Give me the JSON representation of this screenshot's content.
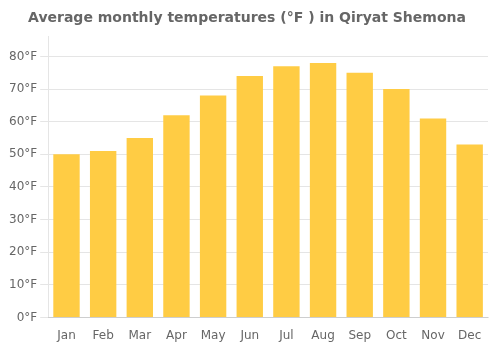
{
  "chart_data": {
    "type": "bar",
    "title": "Average monthly temperatures (°F ) in Qiryat Shemona",
    "categories": [
      "Jan",
      "Feb",
      "Mar",
      "Apr",
      "May",
      "Jun",
      "Jul",
      "Aug",
      "Sep",
      "Oct",
      "Nov",
      "Dec"
    ],
    "values": [
      50,
      51,
      55,
      62,
      68,
      74,
      77,
      78,
      75,
      70,
      61,
      53
    ],
    "color": "#FFCC44",
    "ylim": [
      0,
      86
    ],
    "yticks": [
      {
        "value": 0,
        "label": "0°F"
      },
      {
        "value": 10,
        "label": "10°F"
      },
      {
        "value": 20,
        "label": "20°F"
      },
      {
        "value": 30,
        "label": "30°F"
      },
      {
        "value": 40,
        "label": "40°F"
      },
      {
        "value": 50,
        "label": "50°F"
      },
      {
        "value": 60,
        "label": "60°F"
      },
      {
        "value": 70,
        "label": "70°F"
      },
      {
        "value": 80,
        "label": "80°F"
      }
    ],
    "grid": true
  }
}
